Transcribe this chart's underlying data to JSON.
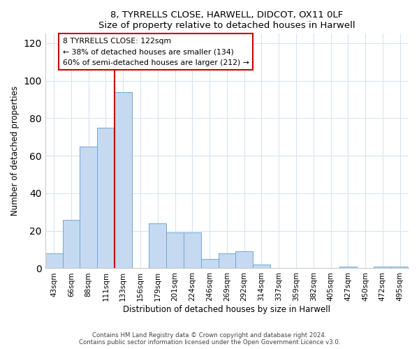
{
  "title": "8, TYRRELLS CLOSE, HARWELL, DIDCOT, OX11 0LF",
  "subtitle": "Size of property relative to detached houses in Harwell",
  "xlabel": "Distribution of detached houses by size in Harwell",
  "ylabel": "Number of detached properties",
  "categories": [
    "43sqm",
    "66sqm",
    "88sqm",
    "111sqm",
    "133sqm",
    "156sqm",
    "179sqm",
    "201sqm",
    "224sqm",
    "246sqm",
    "269sqm",
    "292sqm",
    "314sqm",
    "337sqm",
    "359sqm",
    "382sqm",
    "405sqm",
    "427sqm",
    "450sqm",
    "472sqm",
    "495sqm"
  ],
  "values": [
    8,
    26,
    65,
    75,
    94,
    0,
    24,
    19,
    19,
    5,
    8,
    9,
    2,
    0,
    0,
    0,
    0,
    1,
    0,
    1,
    1
  ],
  "bar_color": "#c5d9f0",
  "bar_edge_color": "#6fa8d6",
  "ylim": [
    0,
    125
  ],
  "yticks": [
    0,
    20,
    40,
    60,
    80,
    100,
    120
  ],
  "annotation_line1": "8 TYRRELLS CLOSE: 122sqm",
  "annotation_line2": "← 38% of detached houses are smaller (134)",
  "annotation_line3": "60% of semi-detached houses are larger (212) →",
  "annotation_box_color": "#ffffff",
  "annotation_box_edge_color": "#cc0000",
  "red_line_x": 3.5,
  "footer_text": "Contains HM Land Registry data © Crown copyright and database right 2024.\nContains public sector information licensed under the Open Government Licence v3.0.",
  "background_color": "#ffffff",
  "plot_background_color": "#ffffff",
  "grid_color": "#d8e4f0"
}
